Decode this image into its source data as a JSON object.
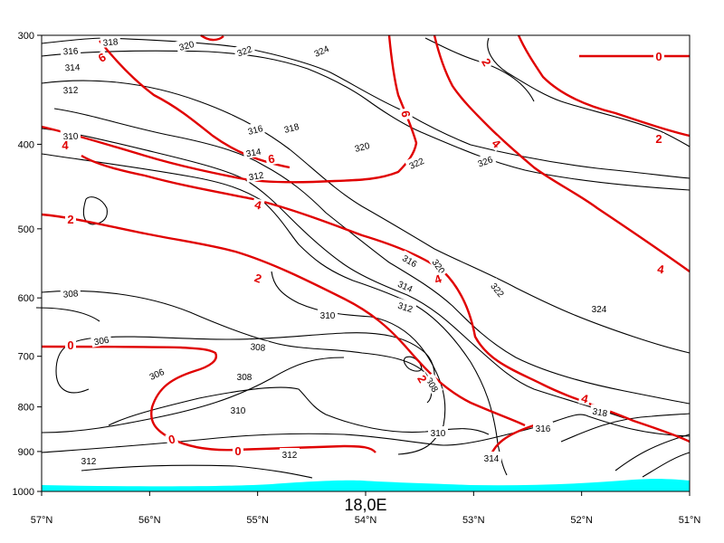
{
  "chart_data": {
    "type": "contour",
    "title": "18,0E",
    "x_axis": {
      "ticks": [
        "57°N",
        "56°N",
        "55°N",
        "54°N",
        "53°N",
        "52°N",
        "51°N"
      ],
      "range": [
        57,
        51
      ]
    },
    "y_axis": {
      "ticks": [
        "300",
        "400",
        "500",
        "600",
        "700",
        "800",
        "900",
        "1000"
      ],
      "range": [
        1000,
        300
      ],
      "scale": "log"
    },
    "terrain_color": "#00ffff",
    "series": [
      {
        "color": "#000000",
        "style": "thin solid",
        "labels": [
          "306",
          "306",
          "308",
          "308",
          "308",
          "308",
          "310",
          "310",
          "310",
          "310",
          "312",
          "312",
          "312",
          "312",
          "312",
          "314",
          "314",
          "314",
          "314",
          "316",
          "316",
          "316",
          "316",
          "318",
          "318",
          "318",
          "320",
          "320",
          "320",
          "322",
          "322",
          "322",
          "324",
          "324",
          "326"
        ]
      },
      {
        "color": "#e00000",
        "style": "thick solid",
        "labels": [
          "0",
          "0",
          "0",
          "0",
          "2",
          "2",
          "2",
          "2",
          "2",
          "4",
          "4",
          "4",
          "4",
          "4",
          "4",
          "6",
          "6",
          "6"
        ]
      }
    ]
  }
}
